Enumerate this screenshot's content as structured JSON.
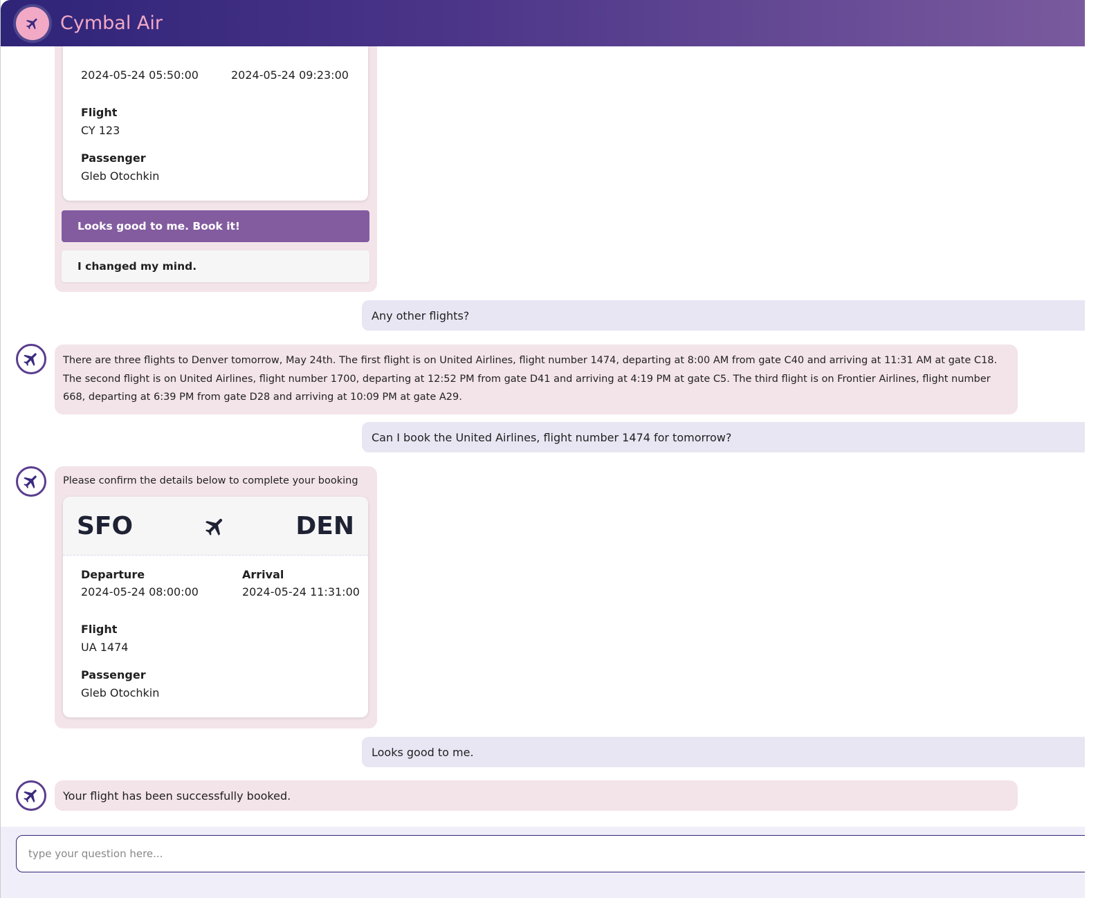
{
  "header": {
    "title": "Cymbal Air",
    "logo_icon": "airplane-icon"
  },
  "colors": {
    "header_start": "#2e2478",
    "header_end": "#7a5a9e",
    "bot_bubble": "#f3e4ea",
    "user_bubble": "#e8e6f3",
    "accent_button": "#835c9f",
    "logo_bg": "#f2a9c6"
  },
  "messages": [
    {
      "role": "bot",
      "type": "booking",
      "departure_value": "2024-05-24 05:50:00",
      "arrival_value": "2024-05-24 09:23:00",
      "flight_label": "Flight",
      "flight_value": "CY 123",
      "passenger_label": "Passenger",
      "passenger_value": "Gleb Otochkin",
      "confirm_button": "Looks good to me. Book it!",
      "cancel_button": "I changed my mind."
    },
    {
      "role": "user",
      "text": "Any other flights?"
    },
    {
      "role": "bot",
      "text": "There are three flights to Denver tomorrow, May 24th. The first flight is on United Airlines, flight number 1474, departing at 8:00 AM from gate C40 and arriving at 11:31 AM at gate C18. The second flight is on United Airlines, flight number 1700, departing at 12:52 PM from gate D41 and arriving at 4:19 PM at gate C5. The third flight is on Frontier Airlines, flight number 668, departing at 6:39 PM from gate D28 and arriving at 10:09 PM at gate A29."
    },
    {
      "role": "user",
      "text": "Can I book the United Airlines, flight number 1474 for tomorrow?"
    },
    {
      "role": "bot",
      "type": "booking",
      "intro": "Please confirm the details below to complete your booking",
      "origin": "SFO",
      "destination": "DEN",
      "departure_label": "Departure",
      "departure_value": "2024-05-24 08:00:00",
      "arrival_label": "Arrival",
      "arrival_value": "2024-05-24 11:31:00",
      "flight_label": "Flight",
      "flight_value": "UA 1474",
      "passenger_label": "Passenger",
      "passenger_value": "Gleb Otochkin"
    },
    {
      "role": "user",
      "text": "Looks good to me."
    },
    {
      "role": "bot",
      "text": "Your flight has been successfully booked."
    }
  ],
  "input": {
    "placeholder": "type your question here...",
    "value": ""
  }
}
